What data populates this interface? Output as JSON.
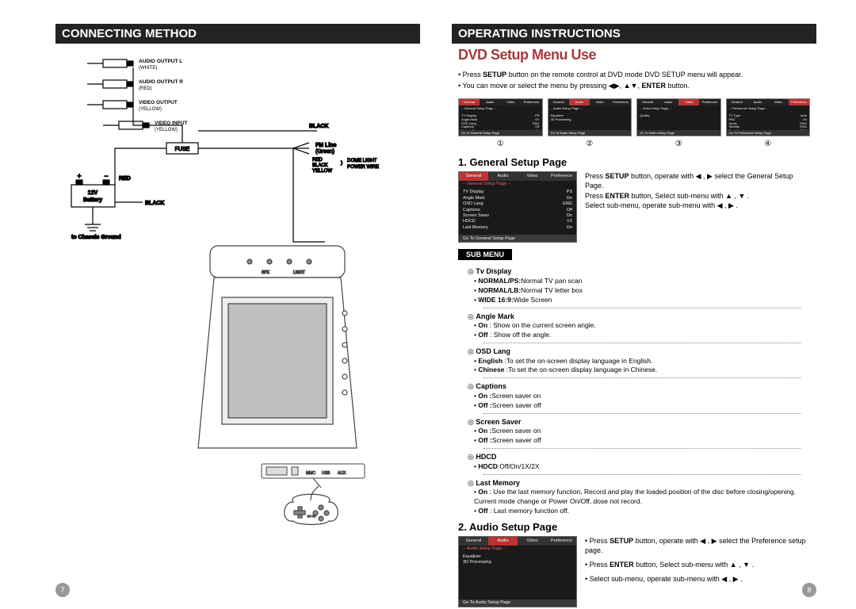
{
  "colors": {
    "header_bg": "#232323",
    "accent_red": "#a8383a",
    "menu_highlight": "#b33",
    "page_num_bg": "#999999"
  },
  "left": {
    "header": "CONNECTING METHOD",
    "page_num": "7",
    "diagram": {
      "labels": {
        "audio_l": "AUDIO OUTPUT  L",
        "audio_l_color": "(WHITE)",
        "audio_r": "AUDIO OUTPUT  R",
        "audio_r_color": "(RED)",
        "video_out": "VIDEO OUTPUT",
        "video_out_color": "(YELLOW)",
        "video_in": "VIDEO INPUT",
        "video_in_color": "(YELLOW)",
        "fuse": "FUSE",
        "battery_top": "12V",
        "battery_bot": "Battery",
        "batt_red": "RED",
        "batt_black": "BLACK",
        "chassis": "to Chassis Ground",
        "fm_line": "FM Line",
        "fm_line_color": "(Green)",
        "black": "BLACK",
        "wire_red": "RED",
        "wire_black": "BLACK",
        "wire_yellow": "YELLOW",
        "dome": "DOME LIGHT",
        "power": "POWER WIRE",
        "spk": "SPK",
        "light": "LIGHT"
      }
    }
  },
  "right": {
    "header": "OPERATING INSTRUCTIONS",
    "title": "DVD Setup Menu Use",
    "intro1_pre": "Press ",
    "intro1_bold": "SETUP",
    "intro1_post": " button on the remote control at DVD mode DVD SETUP menu will appear.",
    "intro2_pre": "You can move or select the menu by pressing ",
    "intro2_sym": "◀▶, ▲▼,",
    "intro2_bold": " ENTER",
    "intro2_post": " button.",
    "thumb_labels": [
      "①",
      "②",
      "③",
      "④"
    ],
    "osd_tabs": [
      "General",
      "Audio",
      "Video",
      "Preference"
    ],
    "thumbs": [
      {
        "sub": "-- General  Setup Page --",
        "foot": "Go To General Setup Page",
        "rows": [
          [
            "TV Display",
            "PS"
          ],
          [
            "Angle Mark",
            "On"
          ],
          [
            "OSD Lang",
            "ENG"
          ],
          [
            "Captions",
            "Off"
          ],
          [
            "Screen Saver",
            "On"
          ],
          [
            "HDCD",
            "1X"
          ],
          [
            "Last Memory",
            "On"
          ]
        ]
      },
      {
        "sub": "-- Audio  Setup Page --",
        "foot": "Go To Audio Setup Page",
        "rows": [
          [
            "Equalizer",
            ""
          ],
          [
            "3D Processing",
            ""
          ]
        ]
      },
      {
        "sub": "-- Video  Setup Page --",
        "foot": "Go To Video Setup Page",
        "rows": [
          [
            "Quality",
            ""
          ]
        ]
      },
      {
        "sub": "-- Preference  Setup Page --",
        "foot": "Go To Preference Setup Page",
        "rows": [
          [
            "TV Type",
            "Auto"
          ],
          [
            "PBC",
            "On"
          ],
          [
            "Audio",
            "ENG"
          ],
          [
            "Subtitle",
            "ENG"
          ],
          [
            "Disc Menu",
            "ENG"
          ],
          [
            "Parental",
            ""
          ],
          [
            "Password",
            ""
          ],
          [
            "Default",
            ""
          ]
        ]
      }
    ],
    "sec1": {
      "title": "1. General Setup Page",
      "osd": {
        "active": 0,
        "sub": "-- General  Setup Page --",
        "foot": "Go To General Setup Page",
        "rows": [
          [
            "TV Display",
            "PS"
          ],
          [
            "Angle Mark",
            "On"
          ],
          [
            "OSD Lang",
            "ENG"
          ],
          [
            "Captions",
            "Off"
          ],
          [
            "Screen Saver",
            "On"
          ],
          [
            "HDCD",
            "1X"
          ],
          [
            "Last Memory",
            "On"
          ]
        ]
      },
      "p1a": "Press ",
      "p1b": "SETUP",
      "p1c": " button, operate with ◀ , ▶ select the General Setup Page.",
      "p2a": "Press ",
      "p2b": "ENTER",
      "p2c": " button, Select sub-menu with ▲ , ▼ .",
      "p3": "Select sub-menu, operate sub-menu with ◀ , ▶ .",
      "submenu_label": "SUB MENU",
      "items": [
        {
          "t": "Tv Display",
          "rows": [
            {
              "b": "NORMAL/PS:",
              "r": "Normal TV pan scan"
            },
            {
              "b": "NORMAL/LB:",
              "r": "Normal TV letter box"
            },
            {
              "b": "WIDE 16:9:",
              "r": "Wide Screen"
            }
          ]
        },
        {
          "t": "Angle Mark",
          "rows": [
            {
              "b": "On ",
              "r": ": Show on the current screen angle."
            },
            {
              "b": "Off ",
              "r": ": Show off the angle."
            }
          ]
        },
        {
          "t": "OSD Lang",
          "rows": [
            {
              "b": "English ",
              "r": ":To set the on-screen display language in English."
            },
            {
              "b": "Chinese ",
              "r": ":To set the on-screen display language in Chinese."
            }
          ]
        },
        {
          "t": "Captions",
          "rows": [
            {
              "b": "On :",
              "r": "Screen saver on"
            },
            {
              "b": "Off :",
              "r": "Screen saver off"
            }
          ]
        },
        {
          "t": " Screen Saver",
          "rows": [
            {
              "b": "On :",
              "r": "Screen saver on"
            },
            {
              "b": "Off :",
              "r": "Screen saver off"
            }
          ]
        },
        {
          "t": "HDCD",
          "rows": [
            {
              "b": "HDCD",
              "r": ":Off/On/1X/2X"
            }
          ]
        },
        {
          "t": "Last Memory",
          "rows": [
            {
              "b": "On ",
              "r": ": Use the last memory function, Record and play the loaded position of the disc before closing/opening. Current mode change or Power On/Off, dose not record."
            },
            {
              "b": "Off ",
              "r": ": Last memory function off."
            }
          ]
        }
      ]
    },
    "sec2": {
      "title": "2.  Audio Setup Page",
      "osd": {
        "active": 1,
        "sub": "-- Audio  Setup Page --",
        "foot": "Go To Audio Setup Page",
        "rows": [
          [
            "Equalizer",
            ""
          ],
          [
            "3D Processing",
            ""
          ]
        ]
      },
      "lines": [
        {
          "pre": "Press ",
          "b": "SETUP",
          "post": " button, operate with ◀ , ▶ select the Preference setup page."
        },
        {
          "pre": "Press ",
          "b": "ENTER",
          "post": " button, Select sub-menu with ▲ , ▼ ."
        },
        {
          "pre": "",
          "b": "",
          "post": "Select sub-menu, operate sub-menu with ◀ , ▶ ."
        }
      ]
    },
    "page_num": "8"
  }
}
